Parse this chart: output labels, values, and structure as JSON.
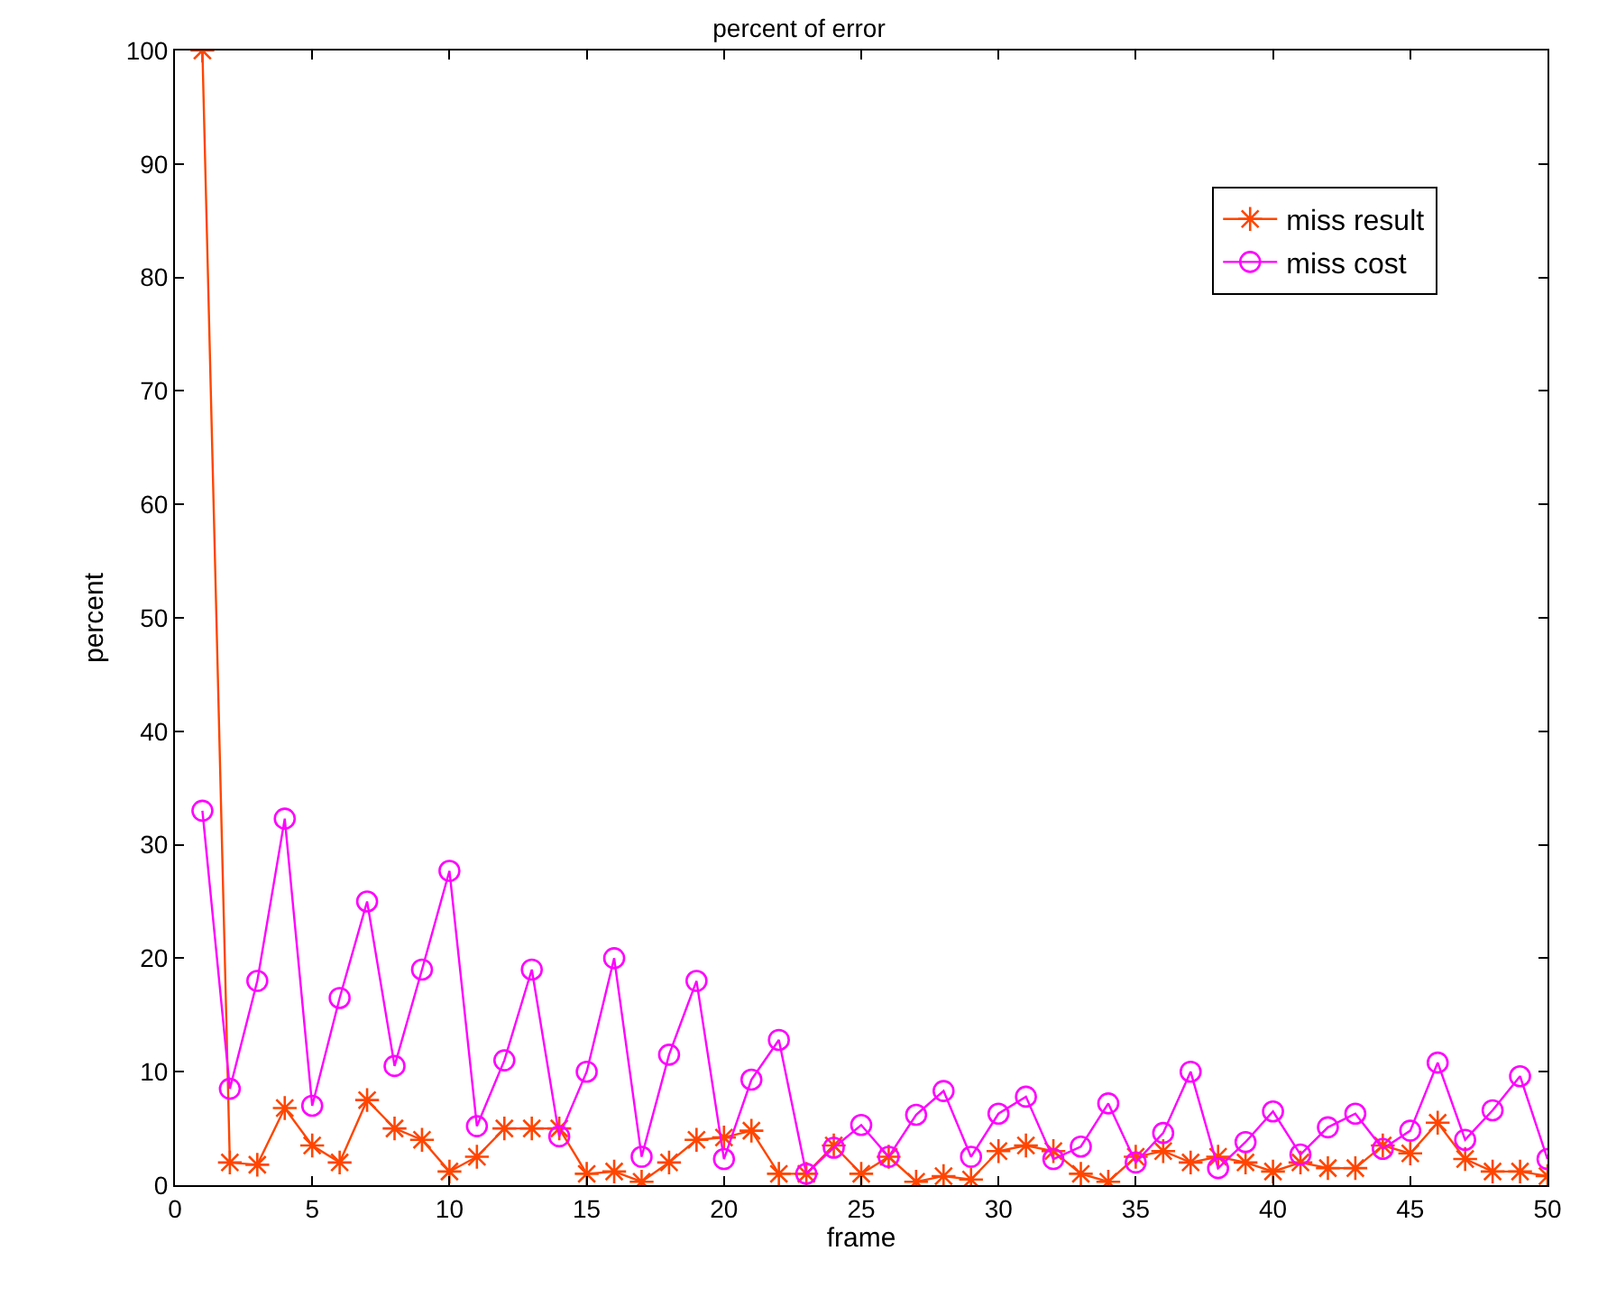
{
  "chart_data": {
    "type": "line",
    "title": "percent of error",
    "xlabel": "frame",
    "ylabel": "percent",
    "x": [
      1,
      2,
      3,
      4,
      5,
      6,
      7,
      8,
      9,
      10,
      11,
      12,
      13,
      14,
      15,
      16,
      17,
      18,
      19,
      20,
      21,
      22,
      23,
      24,
      25,
      26,
      27,
      28,
      29,
      30,
      31,
      32,
      33,
      34,
      35,
      36,
      37,
      38,
      39,
      40,
      41,
      42,
      43,
      44,
      45,
      46,
      47,
      48,
      49,
      50
    ],
    "series": [
      {
        "name": "miss result",
        "color": "#ff4500",
        "marker": "cross",
        "values": [
          100,
          2,
          1.8,
          6.8,
          3.5,
          2,
          7.5,
          5,
          4,
          1.2,
          2.5,
          5,
          5,
          5,
          1,
          1.2,
          0.3,
          2,
          4,
          4.2,
          4.8,
          1,
          1,
          3.5,
          1,
          2.5,
          0.3,
          0.8,
          0.5,
          3,
          3.5,
          3,
          1,
          0.3,
          2.5,
          3,
          2,
          2.5,
          2,
          1.2,
          2,
          1.5,
          1.5,
          3.5,
          2.8,
          5.5,
          2.3,
          1.2,
          1.2,
          0.8
        ]
      },
      {
        "name": "miss cost",
        "color": "#ff00ff",
        "marker": "circle",
        "values": [
          33,
          8.5,
          18,
          32.3,
          7,
          16.5,
          25,
          10.5,
          19,
          27.7,
          5.2,
          11,
          19,
          4.3,
          10,
          20,
          2.5,
          11.5,
          18,
          2.3,
          9.3,
          12.8,
          1,
          3.3,
          5.3,
          2.5,
          6.2,
          8.3,
          2.5,
          6.3,
          7.8,
          2.3,
          3.4,
          7.2,
          2,
          4.6,
          10,
          1.5,
          3.8,
          6.5,
          2.7,
          5.1,
          6.3,
          3.2,
          4.8,
          10.8,
          4,
          6.6,
          9.6,
          2.3
        ]
      }
    ],
    "xlim": [
      0,
      50
    ],
    "xticks": [
      0,
      5,
      10,
      15,
      20,
      25,
      30,
      35,
      40,
      45,
      50
    ],
    "ylim": [
      0,
      100
    ],
    "yticks": [
      0,
      10,
      20,
      30,
      40,
      50,
      60,
      70,
      80,
      90,
      100
    ],
    "legend": "top right",
    "line_style": "solid"
  }
}
